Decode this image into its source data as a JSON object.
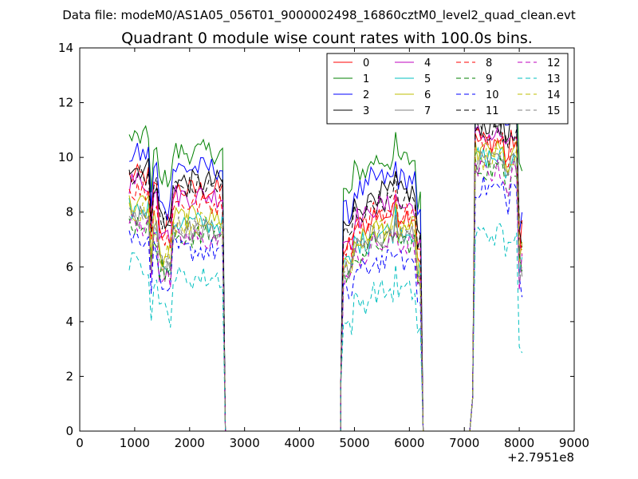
{
  "chart_data": {
    "type": "line",
    "figure_title": "Data file: modeM0/AS1A05_056T01_9000002498_16860cztM0_level2_quad_clean.evt",
    "title": "Quadrant 0 module wise count rates with 100.0s bins.",
    "xlabel": "",
    "ylabel": "",
    "x_offset_label": "+2.7951e8",
    "xlim": [
      0,
      9000
    ],
    "ylim": [
      0,
      14
    ],
    "x_ticks": [
      0,
      1000,
      2000,
      3000,
      4000,
      5000,
      6000,
      7000,
      8000,
      9000
    ],
    "y_ticks": [
      0,
      2,
      4,
      6,
      8,
      10,
      12,
      14
    ],
    "legend_position": "top-right",
    "x": [
      2650,
      2750,
      3000,
      3500,
      4000,
      4500,
      4750,
      6250,
      6300,
      6500,
      7000,
      7150
    ],
    "series": [
      {
        "name": "0",
        "color": "#ff0000",
        "dash": "solid",
        "levels": [
          8.8,
          7.9,
          10.6
        ]
      },
      {
        "name": "1",
        "color": "#008000",
        "dash": "solid",
        "levels": [
          10.2,
          9.9,
          12.6
        ]
      },
      {
        "name": "2",
        "color": "#0000ff",
        "dash": "solid",
        "levels": [
          9.6,
          9.2,
          11.6
        ]
      },
      {
        "name": "3",
        "color": "#000000",
        "dash": "solid",
        "levels": [
          9.1,
          8.7,
          11.2
        ]
      },
      {
        "name": "4",
        "color": "#bf00bf",
        "dash": "solid",
        "levels": [
          8.6,
          8.2,
          10.8
        ]
      },
      {
        "name": "5",
        "color": "#00bfbf",
        "dash": "solid",
        "levels": [
          7.6,
          7.3,
          10.0
        ]
      },
      {
        "name": "6",
        "color": "#bfbf00",
        "dash": "solid",
        "levels": [
          7.8,
          7.4,
          10.2
        ]
      },
      {
        "name": "7",
        "color": "#808080",
        "dash": "solid",
        "levels": [
          7.3,
          7.1,
          9.8
        ]
      },
      {
        "name": "8",
        "color": "#ff0000",
        "dash": "dashed",
        "levels": [
          8.3,
          8.0,
          10.7
        ]
      },
      {
        "name": "9",
        "color": "#008000",
        "dash": "dashed",
        "levels": [
          7.1,
          6.9,
          9.6
        ]
      },
      {
        "name": "10",
        "color": "#0000ff",
        "dash": "dashed",
        "levels": [
          6.6,
          6.2,
          8.9
        ]
      },
      {
        "name": "11",
        "color": "#000000",
        "dash": "dashed",
        "levels": [
          8.9,
          8.4,
          11.0
        ]
      },
      {
        "name": "12",
        "color": "#bf00bf",
        "dash": "dashed",
        "levels": [
          7.0,
          6.8,
          9.5
        ]
      },
      {
        "name": "13",
        "color": "#00bfbf",
        "dash": "dashed",
        "levels": [
          5.6,
          5.1,
          7.2
        ]
      },
      {
        "name": "14",
        "color": "#bfbf00",
        "dash": "dashed",
        "levels": [
          7.6,
          7.3,
          9.9
        ]
      },
      {
        "name": "15",
        "color": "#808080",
        "dash": "dashed",
        "levels": [
          7.4,
          7.1,
          9.7
        ]
      }
    ]
  }
}
